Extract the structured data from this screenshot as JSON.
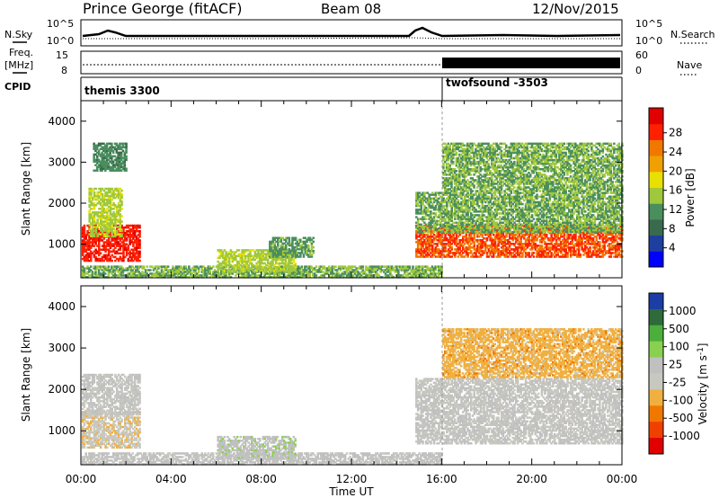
{
  "header": {
    "station": "Prince George (fitACF)",
    "beam": "Beam 08",
    "date": "12/Nov/2015"
  },
  "status_panels": {
    "nsky_label": "N.Sky",
    "nsky_ticks": [
      "10^5",
      "10^0"
    ],
    "nsearch_label": "N.Search",
    "nsearch_ticks": [
      "10^5",
      "10^0"
    ],
    "freq_label_1": "Freq.",
    "freq_label_2": "[MHz]",
    "freq_ticks": [
      "15",
      "8"
    ],
    "nave_label": "Nave",
    "nave_ticks": [
      "60",
      "0"
    ],
    "cpid_label": "CPID",
    "cpid_segments": [
      {
        "name": "themis 3300",
        "start_hour": 0,
        "end_hour": 16
      },
      {
        "name": "twofsound -3503",
        "start_hour": 16,
        "end_hour": 24
      }
    ]
  },
  "colors": {
    "power_scale": [
      "#0000ff",
      "#1e3fa0",
      "#3a6a4e",
      "#4a8e5e",
      "#a0c83c",
      "#e8e000",
      "#f0a000",
      "#f07800",
      "#ff2000",
      "#e00000"
    ],
    "velocity_scale": [
      "#1c3ca6",
      "#2f6a3a",
      "#4caf3c",
      "#8ad050",
      "#c0c0c0",
      "#c8c8c0",
      "#f0b040",
      "#f07800",
      "#f04000",
      "#e00000"
    ]
  },
  "chart_data": [
    {
      "type": "heatmap",
      "panel": "power",
      "ylabel": "Slant Range [km]",
      "xlabel": "Time UT",
      "ylim": [
        180,
        4500
      ],
      "xlim": [
        0,
        24
      ],
      "x_ticks": [
        "00:00",
        "04:00",
        "08:00",
        "12:00",
        "16:00",
        "20:00",
        "00:00"
      ],
      "y_ticks": [
        1000,
        2000,
        3000,
        4000
      ],
      "colorbar_label": "Power [dB]",
      "colorbar_ticks": [
        "4",
        "8",
        "12",
        "16",
        "20",
        "24",
        "28"
      ],
      "colorbar_range": [
        0,
        30
      ],
      "regions": [
        {
          "t0": 0.0,
          "t1": 2.6,
          "r0": 600,
          "r1": 1500,
          "value": 26
        },
        {
          "t0": 0.3,
          "t1": 1.8,
          "r0": 1200,
          "r1": 2400,
          "value": 14
        },
        {
          "t0": 0.5,
          "t1": 2.0,
          "r0": 2800,
          "r1": 3500,
          "value": 10
        },
        {
          "t0": 0.0,
          "t1": 16.0,
          "r0": 200,
          "r1": 500,
          "value": 12
        },
        {
          "t0": 6.0,
          "t1": 9.5,
          "r0": 350,
          "r1": 900,
          "value": 14
        },
        {
          "t0": 8.3,
          "t1": 10.3,
          "r0": 700,
          "r1": 1200,
          "value": 11
        },
        {
          "t0": 14.8,
          "t1": 24.0,
          "r0": 700,
          "r1": 1500,
          "value": 24
        },
        {
          "t0": 14.8,
          "t1": 24.0,
          "r0": 1300,
          "r1": 2300,
          "value": 12
        },
        {
          "t0": 16.0,
          "t1": 24.0,
          "r0": 2300,
          "r1": 3500,
          "value": 12
        }
      ]
    },
    {
      "type": "heatmap",
      "panel": "velocity",
      "ylabel": "Slant Range [km]",
      "xlabel": "Time UT",
      "ylim": [
        180,
        4500
      ],
      "xlim": [
        0,
        24
      ],
      "x_ticks": [
        "00:00",
        "04:00",
        "08:00",
        "12:00",
        "16:00",
        "20:00",
        "00:00"
      ],
      "y_ticks": [
        1000,
        2000,
        3000,
        4000
      ],
      "colorbar_label": "Velocity [m s^-1]",
      "colorbar_ticks": [
        "1000",
        "500",
        "100",
        "25",
        "-25",
        "-100",
        "-500",
        "-1000"
      ],
      "colorbar_range": [
        -1000,
        1000
      ],
      "regions": [
        {
          "t0": 0.0,
          "t1": 2.6,
          "r0": 600,
          "r1": 1500,
          "value": -150
        },
        {
          "t0": 0.0,
          "t1": 2.6,
          "r0": 1400,
          "r1": 2400,
          "value": 0
        },
        {
          "t0": 0.0,
          "t1": 16.0,
          "r0": 200,
          "r1": 500,
          "value": 60
        },
        {
          "t0": 6.0,
          "t1": 9.5,
          "r0": 350,
          "r1": 900,
          "value": 120
        },
        {
          "t0": 14.8,
          "t1": 24.0,
          "r0": 700,
          "r1": 2300,
          "value": 0
        },
        {
          "t0": 16.0,
          "t1": 24.0,
          "r0": 2300,
          "r1": 3500,
          "value": -300
        }
      ]
    }
  ]
}
